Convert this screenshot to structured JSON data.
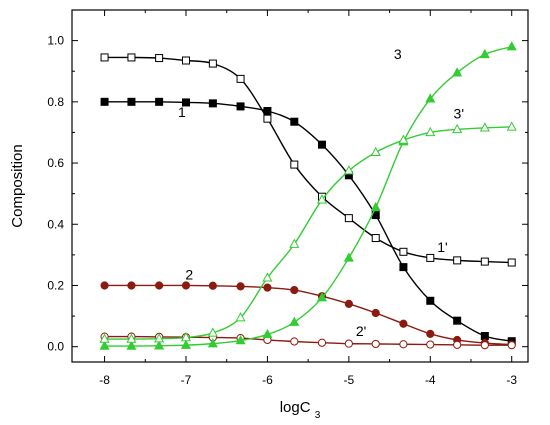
{
  "chart_data": {
    "type": "line",
    "xlabel": "logC",
    "xlabel_sub": "3",
    "ylabel": "Composition",
    "xlim": [
      -8.4,
      -2.8
    ],
    "ylim": [
      -0.05,
      1.1
    ],
    "xticks": [
      -8,
      -7,
      -6,
      -5,
      -4,
      -3
    ],
    "xtick_labels": [
      "-8",
      "-7",
      "-6",
      "-5",
      "-4",
      "-3"
    ],
    "yticks": [
      0.0,
      0.2,
      0.4,
      0.6,
      0.8,
      1.0
    ],
    "ytick_labels": [
      "0.0",
      "0.2",
      "0.4",
      "0.6",
      "0.8",
      "1.0"
    ],
    "grid": false,
    "series": [
      {
        "name": "1",
        "color": "#000000",
        "marker": "square",
        "filled": true,
        "x": [
          -8,
          -7.67,
          -7.33,
          -7.0,
          -6.67,
          -6.33,
          -6.0,
          -5.67,
          -5.33,
          -5.0,
          -4.67,
          -4.33,
          -4.0,
          -3.67,
          -3.33,
          -3.0
        ],
        "y": [
          0.8,
          0.8,
          0.8,
          0.798,
          0.795,
          0.785,
          0.77,
          0.735,
          0.66,
          0.56,
          0.43,
          0.26,
          0.15,
          0.085,
          0.035,
          0.018
        ]
      },
      {
        "name": "1'",
        "color": "#000000",
        "marker": "square",
        "filled": false,
        "x": [
          -8,
          -7.67,
          -7.33,
          -7.0,
          -6.67,
          -6.33,
          -6.0,
          -5.67,
          -5.33,
          -5.0,
          -4.67,
          -4.33,
          -4.0,
          -3.67,
          -3.33,
          -3.0
        ],
        "y": [
          0.945,
          0.945,
          0.943,
          0.935,
          0.925,
          0.875,
          0.745,
          0.595,
          0.49,
          0.42,
          0.355,
          0.31,
          0.29,
          0.282,
          0.278,
          0.275
        ]
      },
      {
        "name": "2",
        "color": "#8b1a10",
        "marker": "circle",
        "filled": true,
        "x": [
          -8,
          -7.67,
          -7.33,
          -7.0,
          -6.67,
          -6.33,
          -6.0,
          -5.67,
          -5.33,
          -5.0,
          -4.67,
          -4.33,
          -4.0,
          -3.67,
          -3.33,
          -3.0
        ],
        "y": [
          0.2,
          0.2,
          0.2,
          0.2,
          0.199,
          0.197,
          0.193,
          0.185,
          0.165,
          0.14,
          0.11,
          0.075,
          0.042,
          0.022,
          0.012,
          0.007
        ]
      },
      {
        "name": "2'",
        "color": "#8b1a10",
        "marker": "circle",
        "filled": false,
        "x": [
          -8,
          -7.67,
          -7.33,
          -7.0,
          -6.67,
          -6.33,
          -6.0,
          -5.67,
          -5.33,
          -5.0,
          -4.67,
          -4.33,
          -4.0,
          -3.67,
          -3.33,
          -3.0
        ],
        "y": [
          0.033,
          0.033,
          0.032,
          0.031,
          0.03,
          0.028,
          0.022,
          0.017,
          0.013,
          0.01,
          0.009,
          0.008,
          0.007,
          0.006,
          0.005,
          0.005
        ]
      },
      {
        "name": "3",
        "color": "#33cc33",
        "marker": "triangle",
        "filled": true,
        "x": [
          -8,
          -7.67,
          -7.33,
          -7.0,
          -6.67,
          -6.33,
          -6.0,
          -5.67,
          -5.33,
          -5.0,
          -4.67,
          -4.33,
          -4.0,
          -3.67,
          -3.33,
          -3.0
        ],
        "y": [
          0.002,
          0.002,
          0.003,
          0.005,
          0.01,
          0.02,
          0.04,
          0.08,
          0.16,
          0.29,
          0.455,
          0.67,
          0.81,
          0.895,
          0.955,
          0.98
        ]
      },
      {
        "name": "3'",
        "color": "#33cc33",
        "marker": "triangle",
        "filled": false,
        "x": [
          -8,
          -7.67,
          -7.33,
          -7.0,
          -6.67,
          -6.33,
          -6.0,
          -5.67,
          -5.33,
          -5.0,
          -4.67,
          -4.33,
          -4.0,
          -3.67,
          -3.33,
          -3.0
        ],
        "y": [
          0.025,
          0.025,
          0.026,
          0.03,
          0.045,
          0.095,
          0.225,
          0.335,
          0.48,
          0.575,
          0.635,
          0.675,
          0.7,
          0.71,
          0.715,
          0.718
        ]
      }
    ],
    "annotations": [
      {
        "text": "1",
        "x": -7.05,
        "y": 0.75
      },
      {
        "text": "1'",
        "x": -3.85,
        "y": 0.31
      },
      {
        "text": "2",
        "x": -6.96,
        "y": 0.22
      },
      {
        "text": "2'",
        "x": -4.85,
        "y": 0.035
      },
      {
        "text": "3",
        "x": -4.4,
        "y": 0.94
      },
      {
        "text": "3'",
        "x": -3.65,
        "y": 0.745
      }
    ]
  }
}
